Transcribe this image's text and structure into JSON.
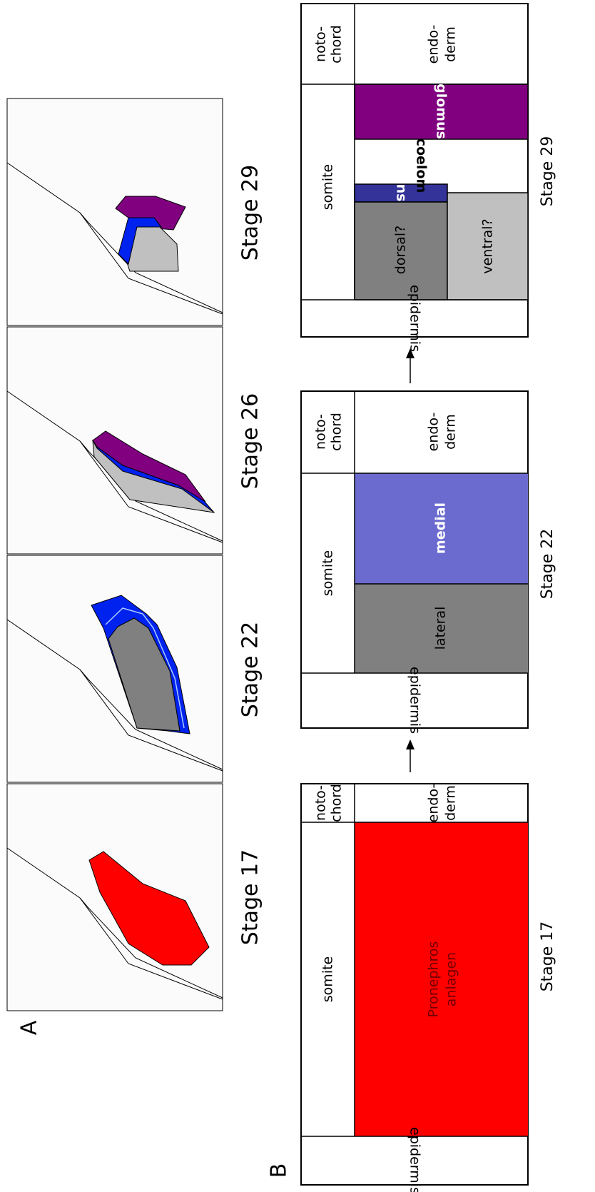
{
  "panel_a": {
    "label": "A",
    "stages": [
      "Stage 17",
      "Stage 22",
      "Stage 26",
      "Stage 29"
    ]
  },
  "panel_b": {
    "label": "B",
    "stage_17": {
      "title": "Stage 17",
      "notochord": [
        "noto-",
        "chord"
      ],
      "endoderm": [
        "endo-",
        "derm"
      ],
      "somite": "somite",
      "pronephros": [
        "Pronephros",
        "anlagen"
      ],
      "epidermis": "epidermis"
    },
    "stage_22": {
      "title": "Stage 22",
      "notochord": [
        "noto-",
        "chord"
      ],
      "endoderm": [
        "endo-",
        "derm"
      ],
      "somite": "somite",
      "lateral": "lateral",
      "medial": "medial",
      "epidermis": "epidermis"
    },
    "stage_29": {
      "title": "Stage 29",
      "notochord": [
        "noto-",
        "chord"
      ],
      "endoderm": [
        "endo-",
        "derm"
      ],
      "somite": "somite",
      "glomus": "glomus",
      "coelom": "coelom",
      "ns": "ns",
      "dorsal": "dorsal?",
      "ventral": "ventral?",
      "epidermis": "epidermis"
    }
  }
}
